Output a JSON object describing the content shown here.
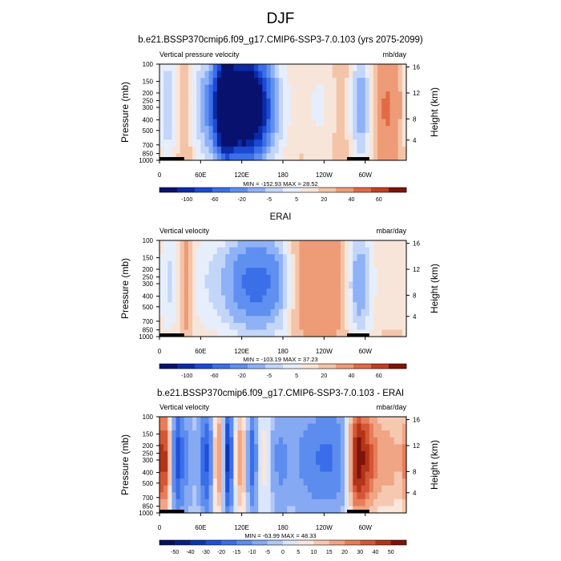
{
  "figure": {
    "main_title": "DJF"
  },
  "colors": {
    "scale13": [
      "#08126e",
      "#0b2aa6",
      "#1c49d4",
      "#3a6fe8",
      "#5f8ff0",
      "#8fb1f6",
      "#c3d6f9",
      "#e7eefb",
      "#f8e5da",
      "#f4c4a8",
      "#ee9b77",
      "#e06b45",
      "#c33e23",
      "#7d1309"
    ],
    "scale16": [
      "#05105e",
      "#08207f",
      "#0c36b0",
      "#1f4fd8",
      "#3a6ee8",
      "#5c8ced",
      "#86a9f3",
      "#b2c8f7",
      "#dbe6fb",
      "#fbe6dc",
      "#f6c8b0",
      "#f0a585",
      "#e87d5a",
      "#d45636",
      "#b23419",
      "#7d1309"
    ]
  },
  "chart_data": [
    {
      "type": "heatmap",
      "title": "b.e21.BSSP370cmip6.f09_g17.CMIP6-SSP3-7.0.103 (yrs 2075-2099)",
      "left_label": "Vertical pressure velocity",
      "right_label": "mb/day",
      "xlabel": "",
      "ylabel": "Pressure (mb)",
      "y2label": "Height (km)",
      "x_ticks": [
        "0",
        "60E",
        "120E",
        "180",
        "120W",
        "60W"
      ],
      "y_ticks": [
        "100",
        "150",
        "200",
        "250",
        "300",
        "400",
        "500",
        "700",
        "850",
        "1000"
      ],
      "y2_ticks": [
        "16",
        "12",
        "8",
        "4"
      ],
      "stats": "MIN = -152.93  MAX = 28.52",
      "colorbar_labels": [
        "-100",
        "-60",
        "-20",
        "-5",
        "5",
        "20",
        "40",
        "60"
      ],
      "palette": "scale13",
      "zlim": [
        -150,
        70
      ],
      "features": [
        {
          "lon": 10,
          "amp": -60,
          "width": 10
        },
        {
          "lon": 40,
          "amp": 25,
          "width": 8
        },
        {
          "lon": 75,
          "amp": -70,
          "width": 25
        },
        {
          "lon": 95,
          "amp": -80,
          "width": 10
        },
        {
          "lon": 115,
          "amp": -110,
          "width": 20
        },
        {
          "lon": 140,
          "amp": -90,
          "width": 20
        },
        {
          "lon": 165,
          "amp": -40,
          "width": 25
        },
        {
          "lon": 200,
          "amp": 10,
          "width": 20
        },
        {
          "lon": 235,
          "amp": -30,
          "width": 25
        },
        {
          "lon": 270,
          "amp": 20,
          "width": 15
        },
        {
          "lon": 290,
          "amp": -60,
          "width": 12
        },
        {
          "lon": 300,
          "amp": -30,
          "width": 10
        },
        {
          "lon": 330,
          "amp": 25,
          "width": 25
        }
      ]
    },
    {
      "type": "heatmap",
      "title": "ERAI",
      "left_label": "Vertical velocity",
      "right_label": "mbar/day",
      "xlabel": "",
      "ylabel": "Pressure (mb)",
      "y2label": "Height (km)",
      "x_ticks": [
        "0",
        "60E",
        "120E",
        "180",
        "120W",
        "60W"
      ],
      "y_ticks": [
        "100",
        "150",
        "200",
        "250",
        "300",
        "400",
        "500",
        "700",
        "850",
        "1000"
      ],
      "y2_ticks": [
        "16",
        "12",
        "8",
        "4"
      ],
      "stats": "MIN = -103.19  MAX = 37.23",
      "colorbar_labels": [
        "-100",
        "-60",
        "-20",
        "-5",
        "5",
        "20",
        "40",
        "60"
      ],
      "palette": "scale13",
      "zlim": [
        -150,
        70
      ],
      "features": [
        {
          "lon": 15,
          "amp": -40,
          "width": 12
        },
        {
          "lon": 38,
          "amp": 30,
          "width": 6
        },
        {
          "lon": 60,
          "amp": -20,
          "width": 15
        },
        {
          "lon": 110,
          "amp": -60,
          "width": 30
        },
        {
          "lon": 150,
          "amp": -60,
          "width": 25
        },
        {
          "lon": 175,
          "amp": -30,
          "width": 15
        },
        {
          "lon": 205,
          "amp": 15,
          "width": 15
        },
        {
          "lon": 245,
          "amp": 20,
          "width": 25
        },
        {
          "lon": 285,
          "amp": -50,
          "width": 10
        },
        {
          "lon": 300,
          "amp": -40,
          "width": 10
        },
        {
          "lon": 330,
          "amp": -15,
          "width": 25
        }
      ]
    },
    {
      "type": "heatmap",
      "title": "b.e21.BSSP370cmip6.f09_g17.CMIP6-SSP3-7.0.103 - ERAI",
      "left_label": "Vertical velocity",
      "right_label": "mbar/day",
      "xlabel": "",
      "ylabel": "Pressure (mb)",
      "y2label": "Height (km)",
      "x_ticks": [
        "0",
        "60E",
        "120E",
        "180",
        "120W",
        "60W"
      ],
      "y_ticks": [
        "100",
        "150",
        "200",
        "250",
        "300",
        "400",
        "500",
        "700",
        "850",
        "1000"
      ],
      "y2_ticks": [
        "16",
        "12",
        "8",
        "4"
      ],
      "stats": "MIN = -63.99  MAX = 48.33",
      "colorbar_labels": [
        "-50",
        "-40",
        "-30",
        "-20",
        "-15",
        "-10",
        "-5",
        "0",
        "5",
        "10",
        "15",
        "20",
        "30",
        "40",
        "50"
      ],
      "palette": "scale16",
      "zlim": [
        -55,
        55
      ],
      "features": [
        {
          "lon": 8,
          "amp": 40,
          "width": 8
        },
        {
          "lon": 25,
          "amp": -35,
          "width": 8
        },
        {
          "lon": 42,
          "amp": -10,
          "width": 6
        },
        {
          "lon": 70,
          "amp": -30,
          "width": 10
        },
        {
          "lon": 85,
          "amp": 40,
          "width": 6
        },
        {
          "lon": 100,
          "amp": -40,
          "width": 6
        },
        {
          "lon": 120,
          "amp": 30,
          "width": 8
        },
        {
          "lon": 135,
          "amp": -35,
          "width": 8
        },
        {
          "lon": 150,
          "amp": 20,
          "width": 10
        },
        {
          "lon": 170,
          "amp": -15,
          "width": 15
        },
        {
          "lon": 210,
          "amp": -10,
          "width": 20
        },
        {
          "lon": 250,
          "amp": -20,
          "width": 25
        },
        {
          "lon": 285,
          "amp": 40,
          "width": 8
        },
        {
          "lon": 300,
          "amp": 30,
          "width": 10
        },
        {
          "lon": 330,
          "amp": 25,
          "width": 25
        }
      ]
    }
  ]
}
